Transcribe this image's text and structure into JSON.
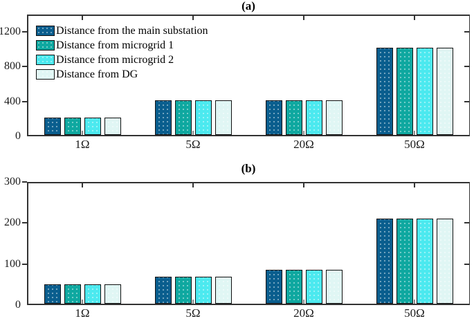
{
  "figure": {
    "background": "#ffffff",
    "axis_color": "#333333",
    "minor_tick_color": "#8a8a8a",
    "bar_edge_color": "#101010",
    "text_color": "#1a1a1a"
  },
  "legend": {
    "position": "top-left-inside-panel-a",
    "items": [
      {
        "label": "Distance from the main substation",
        "color": "#0a5e8e"
      },
      {
        "label": "Distance from microgrid 1",
        "color": "#0fa8a0"
      },
      {
        "label": "Distance from microgrid 2",
        "color": "#4ce9ef"
      },
      {
        "label": "Distance from DG",
        "color": "#e0f6f4"
      }
    ]
  },
  "chart_data": [
    {
      "type": "bar",
      "title": "(a)",
      "categories": [
        "1Ω",
        "5Ω",
        "20Ω",
        "50Ω"
      ],
      "series": [
        {
          "name": "Distance from the main substation",
          "values": [
            200,
            400,
            400,
            1000
          ]
        },
        {
          "name": "Distance from microgrid 1",
          "values": [
            200,
            400,
            400,
            1000
          ]
        },
        {
          "name": "Distance from microgrid 2",
          "values": [
            200,
            400,
            400,
            1000
          ]
        },
        {
          "name": "Distance from DG",
          "values": [
            200,
            400,
            400,
            1000
          ]
        }
      ],
      "xlabel": "",
      "ylabel": "",
      "ylim": [
        0,
        1400
      ],
      "yticks": [
        0,
        400,
        800,
        1200
      ],
      "grid": false,
      "legend_position": "upper left",
      "box": true
    },
    {
      "type": "bar",
      "title": "(b)",
      "categories": [
        "1Ω",
        "5Ω",
        "20Ω",
        "50Ω"
      ],
      "series": [
        {
          "name": "Distance from the main substation",
          "values": [
            47,
            66,
            82,
            207
          ]
        },
        {
          "name": "Distance from microgrid 1",
          "values": [
            47,
            66,
            82,
            207
          ]
        },
        {
          "name": "Distance from microgrid 2",
          "values": [
            47,
            66,
            82,
            207
          ]
        },
        {
          "name": "Distance from DG",
          "values": [
            47,
            66,
            82,
            207
          ]
        }
      ],
      "xlabel": "",
      "ylabel": "",
      "ylim": [
        0,
        300
      ],
      "yticks": [
        0,
        100,
        200,
        300
      ],
      "grid": false,
      "legend_position": "none",
      "box": true
    }
  ]
}
